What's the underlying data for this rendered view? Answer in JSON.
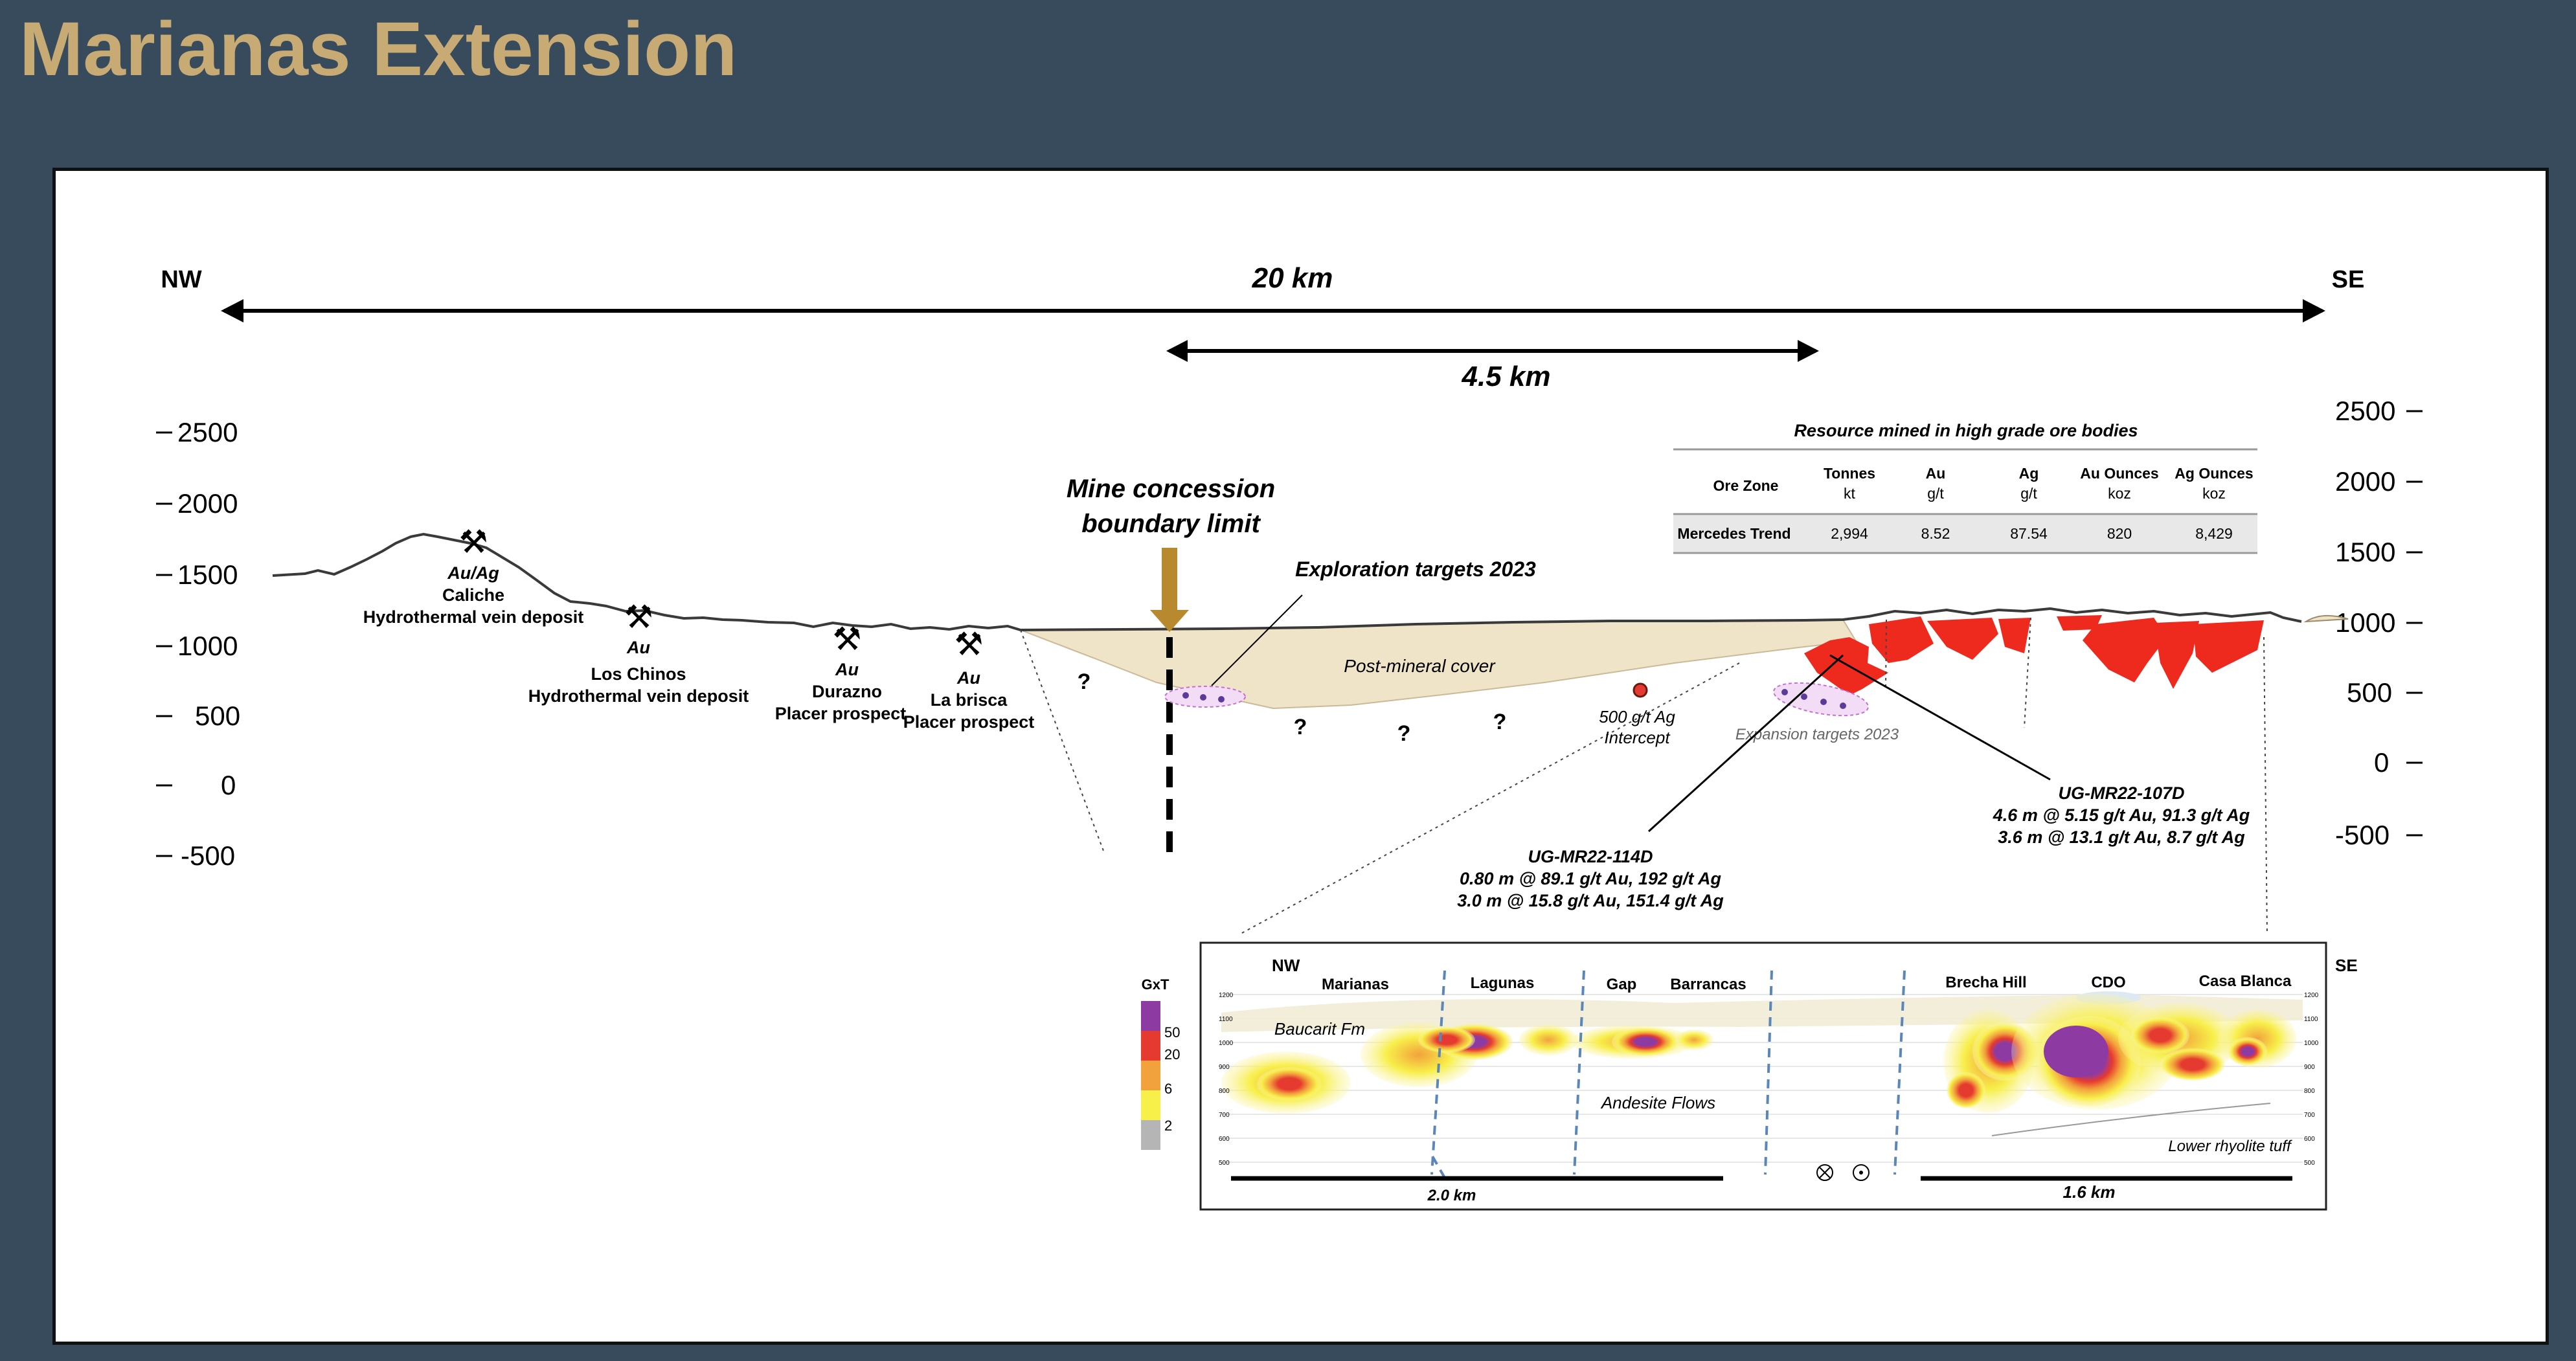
{
  "title": "Marianas Extension",
  "direction": {
    "left": "NW",
    "right": "SE"
  },
  "scale_bars": {
    "long": "20 km",
    "short": "4.5 km"
  },
  "elevation_left": [
    "2500",
    "2000",
    "1500",
    "1000",
    "500",
    "0",
    "-500"
  ],
  "elevation_right": [
    "2500",
    "2000",
    "1500",
    "1000",
    "500",
    "0",
    "-500"
  ],
  "boundary": {
    "line1": "Mine concession",
    "line2": "boundary limit"
  },
  "exploration_targets": "Exploration targets 2023",
  "expansion_targets": "Expansion targets 2023",
  "post_mineral_cover": "Post-mineral cover",
  "question_mark": "?",
  "intercept": {
    "line1": "500 g/t Ag",
    "line2": "Intercept"
  },
  "prospects": [
    {
      "metal": "Au/Ag",
      "name": "Caliche",
      "type": "Hydrothermal vein deposit"
    },
    {
      "metal": "Au",
      "name": "Los Chinos",
      "type": "Hydrothermal vein deposit"
    },
    {
      "metal": "Au",
      "name": "Durazno",
      "type": "Placer prospect"
    },
    {
      "metal": "Au",
      "name": "La brisca",
      "type": "Placer prospect"
    }
  ],
  "drillholes": [
    {
      "id": "UG-MR22-114D",
      "lines": [
        "0.80 m @ 89.1 g/t Au, 192 g/t Ag",
        "3.0 m @ 15.8 g/t Au, 151.4 g/t Ag"
      ]
    },
    {
      "id": "UG-MR22-107D",
      "lines": [
        "4.6 m @ 5.15 g/t Au, 91.3 g/t Ag",
        "3.6 m @ 13.1 g/t Au, 8.7 g/t Ag"
      ]
    }
  ],
  "resource_table": {
    "caption": "Resource mined in high grade ore bodies",
    "headers": [
      {
        "name": "Ore Zone",
        "unit": ""
      },
      {
        "name": "Tonnes",
        "unit": "kt"
      },
      {
        "name": "Au",
        "unit": "g/t"
      },
      {
        "name": "Ag",
        "unit": "g/t"
      },
      {
        "name": "Au Ounces",
        "unit": "koz"
      },
      {
        "name": "Ag Ounces",
        "unit": "koz"
      }
    ],
    "rows": [
      [
        "Mercedes Trend",
        "2,994",
        "8.52",
        "87.54",
        "820",
        "8,429"
      ]
    ]
  },
  "inset": {
    "nw": "NW",
    "se": "SE",
    "zones": [
      "Marianas",
      "Lagunas",
      "Gap",
      "Barrancas",
      "Brecha Hill",
      "CDO",
      "Casa Blanca"
    ],
    "units": {
      "baucarit": "Baucarit Fm",
      "andesite": "Andesite Flows",
      "rhyolite": "Lower rhyolite tuff"
    },
    "scale_left": "2.0  km",
    "scale_right": "1.6  km",
    "elev_ticks": [
      "1200",
      "1100",
      "1000",
      "900",
      "800",
      "700",
      "600",
      "500"
    ]
  },
  "legend": {
    "title": "GxT",
    "labels": [
      "50",
      "20",
      "6",
      "2"
    ],
    "colors": [
      "#8e3aa3",
      "#e53a2f",
      "#f2a23c",
      "#f7ef4a",
      "#b5b5b5"
    ]
  },
  "colors": {
    "ore": "#ee2a1f",
    "cover": "#efe3c8",
    "boundary_arrow": "#b8892f",
    "target": "#c56fd4"
  }
}
